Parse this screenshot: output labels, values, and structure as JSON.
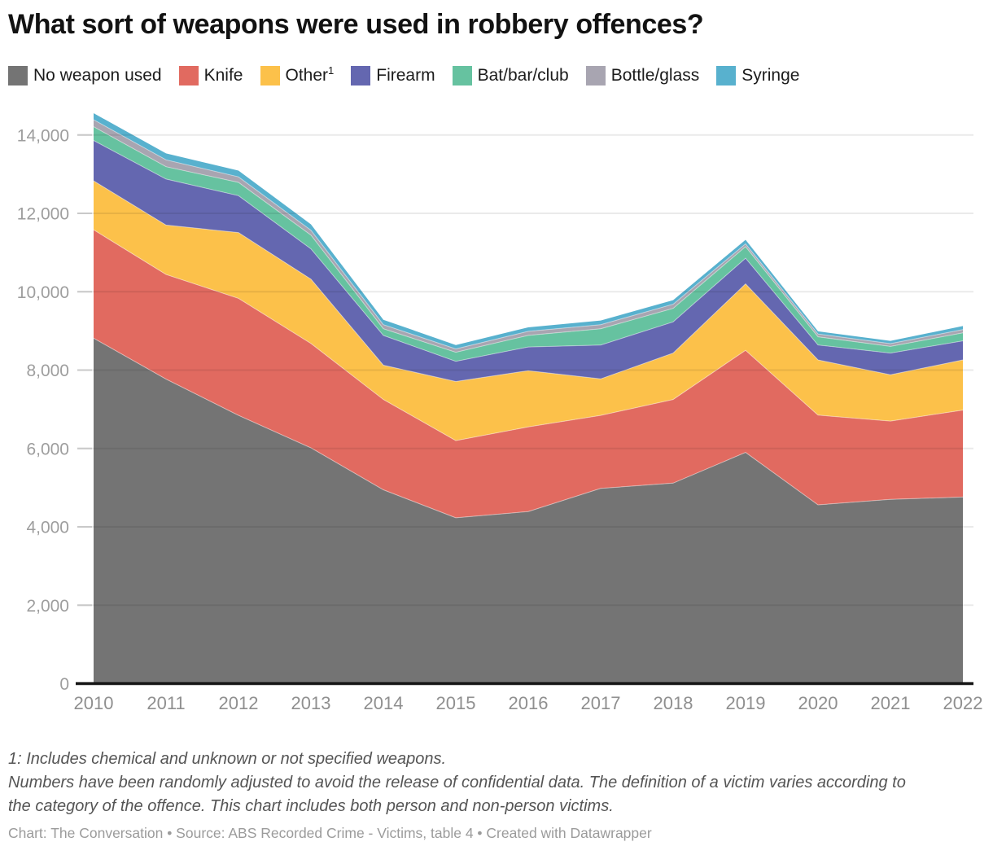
{
  "title": "What sort of weapons were used in robbery offences?",
  "legend": {
    "items": [
      {
        "label": "No weapon used",
        "sup": ""
      },
      {
        "label": "Knife",
        "sup": ""
      },
      {
        "label": "Other",
        "sup": "1"
      },
      {
        "label": "Firearm",
        "sup": ""
      },
      {
        "label": "Bat/bar/club",
        "sup": ""
      },
      {
        "label": "Bottle/glass",
        "sup": ""
      },
      {
        "label": "Syringe",
        "sup": ""
      }
    ]
  },
  "chart_data": {
    "type": "area",
    "stacked": true,
    "title": "What sort of weapons were used in robbery offences?",
    "xlabel": "",
    "ylabel": "",
    "x": [
      2010,
      2011,
      2012,
      2013,
      2014,
      2015,
      2016,
      2017,
      2018,
      2019,
      2020,
      2021,
      2022
    ],
    "series": [
      {
        "name": "No weapon used",
        "color": "#747474",
        "values": [
          8815,
          7770,
          6845,
          6015,
          4945,
          4230,
          4390,
          4980,
          5115,
          5900,
          4560,
          4700,
          4760
        ]
      },
      {
        "name": "Knife",
        "color": "#e16a60",
        "values": [
          2765,
          2670,
          2985,
          2665,
          2305,
          1970,
          2160,
          1865,
          2135,
          2605,
          2290,
          2000,
          2220
        ]
      },
      {
        "name": "Other",
        "color": "#fcc14a",
        "values": [
          1250,
          1260,
          1680,
          1640,
          875,
          1510,
          1435,
          930,
          1185,
          1695,
          1410,
          1180,
          1280
        ]
      },
      {
        "name": "Firearm",
        "color": "#6467b0",
        "values": [
          1030,
          1175,
          940,
          775,
          760,
          515,
          605,
          865,
          795,
          655,
          380,
          555,
          485
        ]
      },
      {
        "name": "Bat/bar/club",
        "color": "#66c2a0",
        "values": [
          350,
          315,
          340,
          350,
          170,
          230,
          295,
          415,
          345,
          295,
          210,
          170,
          205
        ]
      },
      {
        "name": "Bottle/glass",
        "color": "#a8a5b1",
        "values": [
          180,
          175,
          140,
          125,
          105,
          85,
          105,
          105,
          105,
          70,
          70,
          70,
          85
        ]
      },
      {
        "name": "Syringe",
        "color": "#58b1ce",
        "values": [
          165,
          165,
          160,
          150,
          125,
          100,
          100,
          105,
          105,
          105,
          70,
          70,
          90
        ]
      }
    ],
    "totals": [
      14555,
      13530,
      13090,
      11720,
      9285,
      8640,
      9090,
      9265,
      9785,
      11325,
      8990,
      8745,
      9125
    ],
    "ylim": [
      0,
      14600
    ],
    "yticks": [
      0,
      2000,
      4000,
      6000,
      8000,
      10000,
      12000,
      14000
    ],
    "grid": "horizontal",
    "legend_position": "top"
  },
  "footnotes": [
    "1: Includes chemical and unknown or not specified weapons.",
    "Numbers have been randomly adjusted to avoid the release of confidential data. The definition of a victim varies according to the category of the offence. This chart includes both person and non-person victims."
  ],
  "caption": "Chart: The Conversation • Source: ABS Recorded Crime - Victims, table 4 • Created with Datawrapper"
}
